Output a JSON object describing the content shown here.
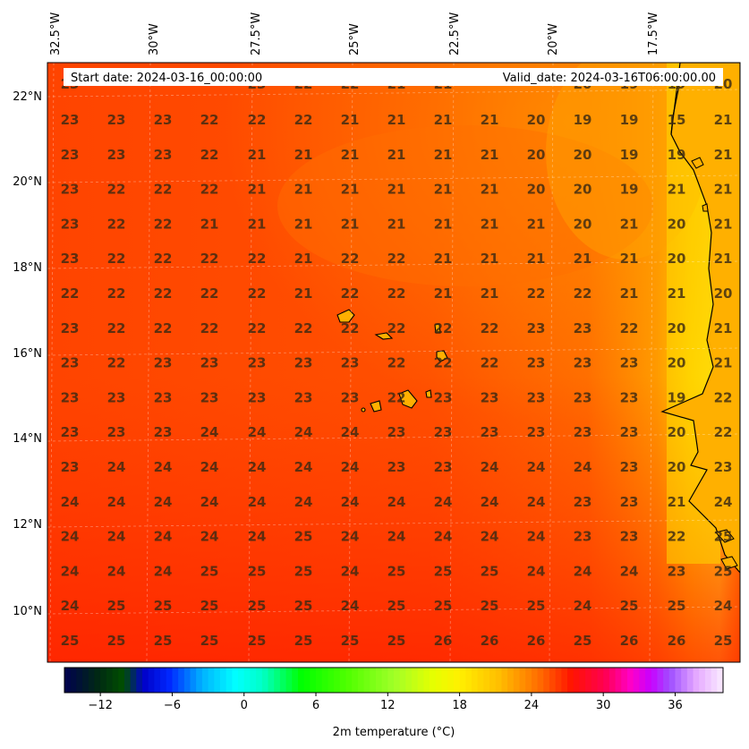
{
  "header": {
    "start_label": "Start date: 2024-03-16_00:00:00",
    "valid_label": "Valid_date: 2024-03-16T06:00:00.00"
  },
  "lon_labels": [
    "32.5°W",
    "30°W",
    "27.5°W",
    "25°W",
    "22.5°W",
    "20°W",
    "17.5°W"
  ],
  "lat_labels": [
    "22°N",
    "20°N",
    "18°N",
    "16°N",
    "14°N",
    "12°N",
    "10°N"
  ],
  "colorbar": {
    "min": -15,
    "max": 40,
    "ticks": [
      -12,
      -6,
      0,
      6,
      12,
      18,
      24,
      30,
      36
    ],
    "tick_labels": [
      "−12",
      "−6",
      "0",
      "6",
      "12",
      "18",
      "24",
      "30",
      "36"
    ],
    "label": "2m temperature ($^\\circ$C)",
    "label_display": "2m temperature (°C)"
  },
  "colors": {
    "base": "#ff3a00",
    "warm": "#ff5a00",
    "coastal": "#ffd400",
    "hot": "#ff2a00",
    "land": "#ffc107",
    "coast_line": "#000000"
  },
  "chart_data": {
    "type": "heatmap",
    "grid_values": [
      [
        23,
        23,
        23,
        22,
        22,
        22,
        21,
        21,
        21,
        21,
        20,
        19,
        19,
        15,
        21
      ],
      [
        23,
        23,
        23,
        22,
        21,
        21,
        21,
        21,
        21,
        21,
        20,
        20,
        19,
        19,
        21
      ],
      [
        23,
        22,
        22,
        22,
        21,
        21,
        21,
        21,
        21,
        21,
        20,
        20,
        19,
        21,
        21
      ],
      [
        23,
        22,
        22,
        21,
        21,
        21,
        21,
        21,
        21,
        21,
        21,
        20,
        21,
        20,
        21
      ],
      [
        23,
        22,
        22,
        22,
        22,
        21,
        22,
        22,
        21,
        21,
        21,
        21,
        21,
        20,
        21
      ],
      [
        22,
        22,
        22,
        22,
        22,
        21,
        22,
        22,
        21,
        21,
        22,
        22,
        21,
        21,
        20
      ],
      [
        23,
        22,
        22,
        22,
        22,
        22,
        22,
        22,
        22,
        22,
        23,
        23,
        22,
        20,
        21
      ],
      [
        23,
        22,
        23,
        23,
        23,
        23,
        23,
        22,
        22,
        22,
        23,
        23,
        23,
        20,
        21
      ],
      [
        23,
        23,
        23,
        23,
        23,
        23,
        23,
        22,
        23,
        23,
        23,
        23,
        23,
        19,
        22
      ],
      [
        23,
        23,
        23,
        24,
        24,
        24,
        24,
        23,
        23,
        23,
        23,
        23,
        23,
        20,
        22
      ],
      [
        23,
        24,
        24,
        24,
        24,
        24,
        24,
        23,
        23,
        24,
        24,
        24,
        23,
        20,
        23
      ],
      [
        24,
        24,
        24,
        24,
        24,
        24,
        24,
        24,
        24,
        24,
        24,
        23,
        23,
        21,
        24
      ],
      [
        24,
        24,
        24,
        24,
        24,
        25,
        24,
        24,
        24,
        24,
        24,
        23,
        23,
        22,
        25
      ],
      [
        24,
        24,
        24,
        25,
        25,
        25,
        24,
        25,
        25,
        25,
        24,
        24,
        24,
        23,
        25
      ],
      [
        24,
        25,
        25,
        25,
        25,
        25,
        24,
        25,
        25,
        25,
        25,
        24,
        25,
        25,
        24
      ],
      [
        25,
        25,
        25,
        25,
        25,
        25,
        25,
        25,
        26,
        26,
        26,
        25,
        26,
        26,
        25
      ]
    ],
    "partial_top_row": [
      "23",
      "",
      "",
      "",
      "23",
      "22",
      "22",
      "21",
      "21",
      "",
      "",
      "20",
      "19",
      "19",
      "20"
    ],
    "xlabel": "",
    "ylabel": ""
  }
}
